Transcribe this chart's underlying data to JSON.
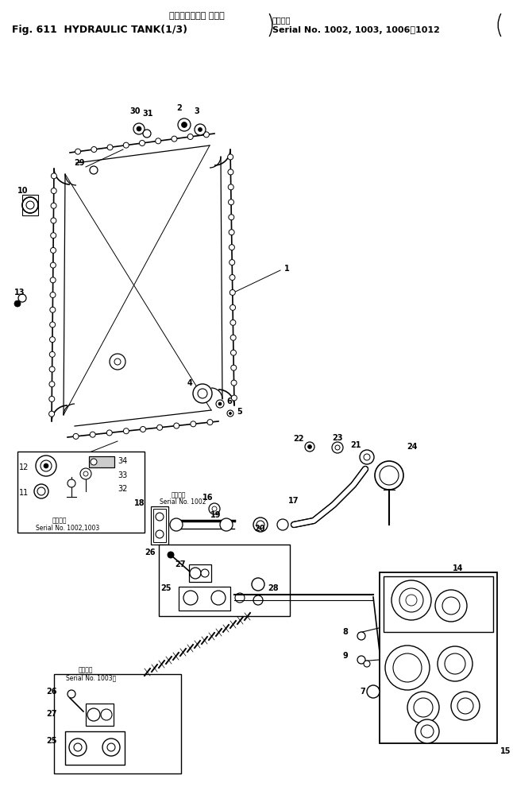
{
  "title_jp": "ハイドロリック タンク",
  "title_en": "Fig. 611  HYDRAULIC TANK(1/3)",
  "serial_top1": "適用号機",
  "serial_top2": "Serial No. 1002, 1003, 1006～1012",
  "bg_color": "#ffffff",
  "lc": "#000000",
  "fig_width": 6.46,
  "fig_height": 9.9,
  "dpi": 100
}
